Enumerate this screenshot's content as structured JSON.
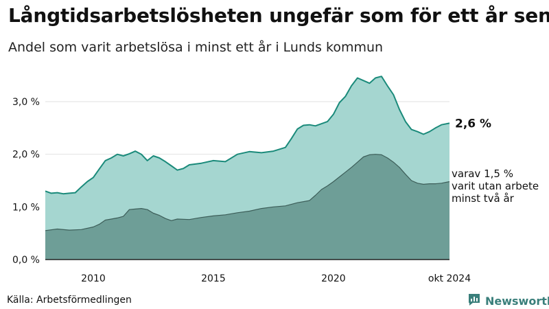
{
  "header": {
    "title": "Långtidsarbetslösheten ungefär som för ett år sen",
    "subtitle": "Andel som varit arbetslösa i minst ett år i Lunds kommun"
  },
  "footer": {
    "source": "Källa: Arbetsförmedlingen",
    "brand": "Newsworthy"
  },
  "colors": {
    "total_fill": "#a5d6d0",
    "total_line": "#1a8a7a",
    "longterm_fill": "#6e9e97",
    "longterm_line": "#3c5d58",
    "brand": "#3a7f7b"
  },
  "chart_data": {
    "type": "area",
    "title": "Långtidsarbetslösheten ungefär som för ett år sen",
    "subtitle": "Andel som varit arbetslösa i minst ett år i Lunds kommun",
    "xlabel": "",
    "ylabel": "",
    "x_range": [
      2008.0,
      2024.833
    ],
    "ylim": [
      0,
      3.6
    ],
    "y_ticks": [
      0,
      1,
      2,
      3
    ],
    "y_tick_labels": [
      "0,0 %",
      "1,0 %",
      "2,0 %",
      "3,0 %"
    ],
    "x_ticks": [
      2010,
      2015,
      2020,
      2024.833
    ],
    "x_tick_labels": [
      "2010",
      "2015",
      "2020",
      "okt 2024"
    ],
    "grid": true,
    "series": [
      {
        "name": "Andel som varit arbetslösa i minst ett år",
        "end_label": "2,6 %",
        "points": [
          [
            2008.0,
            1.3
          ],
          [
            2008.25,
            1.26
          ],
          [
            2008.5,
            1.27
          ],
          [
            2008.75,
            1.25
          ],
          [
            2009.0,
            1.26
          ],
          [
            2009.25,
            1.27
          ],
          [
            2009.5,
            1.38
          ],
          [
            2009.75,
            1.48
          ],
          [
            2010.0,
            1.56
          ],
          [
            2010.25,
            1.72
          ],
          [
            2010.5,
            1.88
          ],
          [
            2010.75,
            1.93
          ],
          [
            2011.0,
            2.0
          ],
          [
            2011.25,
            1.97
          ],
          [
            2011.5,
            2.01
          ],
          [
            2011.75,
            2.06
          ],
          [
            2012.0,
            2.0
          ],
          [
            2012.25,
            1.88
          ],
          [
            2012.5,
            1.97
          ],
          [
            2012.75,
            1.93
          ],
          [
            2013.0,
            1.86
          ],
          [
            2013.25,
            1.78
          ],
          [
            2013.5,
            1.7
          ],
          [
            2013.75,
            1.73
          ],
          [
            2014.0,
            1.8
          ],
          [
            2014.5,
            1.83
          ],
          [
            2015.0,
            1.88
          ],
          [
            2015.5,
            1.86
          ],
          [
            2016.0,
            2.0
          ],
          [
            2016.5,
            2.05
          ],
          [
            2017.0,
            2.03
          ],
          [
            2017.5,
            2.06
          ],
          [
            2018.0,
            2.13
          ],
          [
            2018.25,
            2.3
          ],
          [
            2018.5,
            2.48
          ],
          [
            2018.75,
            2.55
          ],
          [
            2019.0,
            2.56
          ],
          [
            2019.25,
            2.54
          ],
          [
            2019.5,
            2.58
          ],
          [
            2019.75,
            2.62
          ],
          [
            2020.0,
            2.76
          ],
          [
            2020.25,
            2.98
          ],
          [
            2020.5,
            3.1
          ],
          [
            2020.75,
            3.3
          ],
          [
            2021.0,
            3.45
          ],
          [
            2021.25,
            3.4
          ],
          [
            2021.5,
            3.35
          ],
          [
            2021.75,
            3.45
          ],
          [
            2022.0,
            3.48
          ],
          [
            2022.25,
            3.3
          ],
          [
            2022.5,
            3.13
          ],
          [
            2022.75,
            2.85
          ],
          [
            2023.0,
            2.62
          ],
          [
            2023.25,
            2.47
          ],
          [
            2023.5,
            2.43
          ],
          [
            2023.75,
            2.38
          ],
          [
            2024.0,
            2.43
          ],
          [
            2024.25,
            2.5
          ],
          [
            2024.5,
            2.56
          ],
          [
            2024.833,
            2.59
          ]
        ]
      },
      {
        "name": "varav arbetslösa i minst två år",
        "end_label": [
          "varav 1,5 %",
          "varit utan arbete",
          "minst två år"
        ],
        "points": [
          [
            2008.0,
            0.55
          ],
          [
            2008.5,
            0.58
          ],
          [
            2009.0,
            0.56
          ],
          [
            2009.5,
            0.57
          ],
          [
            2010.0,
            0.62
          ],
          [
            2010.25,
            0.67
          ],
          [
            2010.5,
            0.75
          ],
          [
            2010.75,
            0.77
          ],
          [
            2011.0,
            0.79
          ],
          [
            2011.25,
            0.82
          ],
          [
            2011.5,
            0.95
          ],
          [
            2011.75,
            0.96
          ],
          [
            2012.0,
            0.97
          ],
          [
            2012.25,
            0.95
          ],
          [
            2012.5,
            0.88
          ],
          [
            2012.75,
            0.84
          ],
          [
            2013.0,
            0.78
          ],
          [
            2013.25,
            0.74
          ],
          [
            2013.5,
            0.77
          ],
          [
            2014.0,
            0.76
          ],
          [
            2014.5,
            0.8
          ],
          [
            2015.0,
            0.83
          ],
          [
            2015.5,
            0.85
          ],
          [
            2016.0,
            0.89
          ],
          [
            2016.5,
            0.92
          ],
          [
            2017.0,
            0.97
          ],
          [
            2017.5,
            1.0
          ],
          [
            2018.0,
            1.02
          ],
          [
            2018.5,
            1.08
          ],
          [
            2019.0,
            1.12
          ],
          [
            2019.25,
            1.22
          ],
          [
            2019.5,
            1.33
          ],
          [
            2019.75,
            1.4
          ],
          [
            2020.0,
            1.48
          ],
          [
            2020.25,
            1.57
          ],
          [
            2020.5,
            1.66
          ],
          [
            2020.75,
            1.75
          ],
          [
            2021.0,
            1.85
          ],
          [
            2021.25,
            1.95
          ],
          [
            2021.5,
            1.99
          ],
          [
            2021.75,
            2.0
          ],
          [
            2022.0,
            1.99
          ],
          [
            2022.25,
            1.93
          ],
          [
            2022.5,
            1.85
          ],
          [
            2022.75,
            1.75
          ],
          [
            2023.0,
            1.62
          ],
          [
            2023.25,
            1.5
          ],
          [
            2023.5,
            1.45
          ],
          [
            2023.75,
            1.43
          ],
          [
            2024.0,
            1.44
          ],
          [
            2024.25,
            1.44
          ],
          [
            2024.5,
            1.45
          ],
          [
            2024.833,
            1.48
          ]
        ]
      }
    ]
  }
}
